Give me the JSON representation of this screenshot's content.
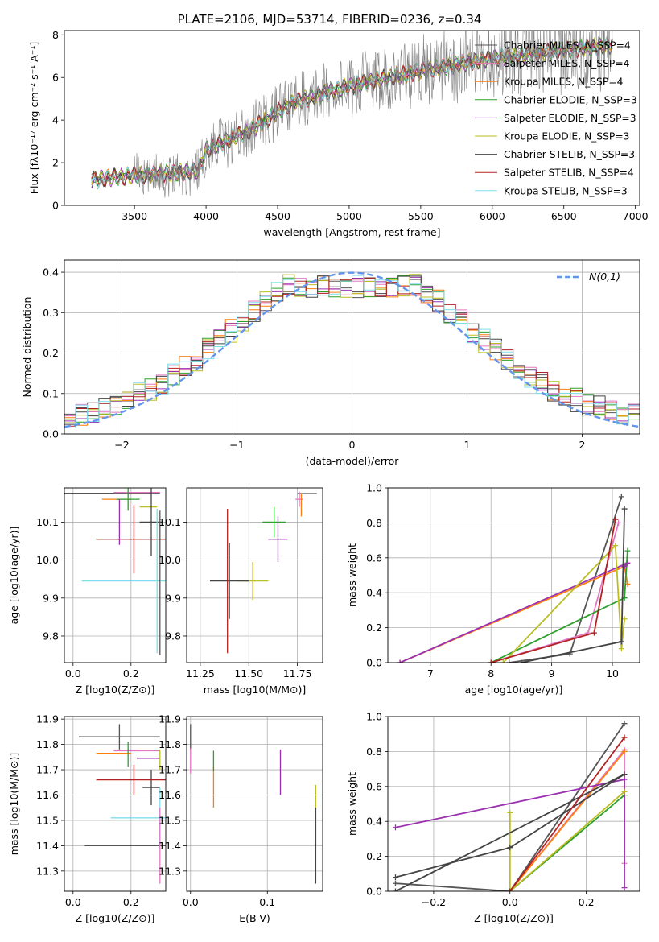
{
  "figure_title": "PLATE=2106, MJD=53714, FIBERID=0236, z=0.34",
  "colors": {
    "c1": "#555555",
    "c2": "#e377c2",
    "c3": "#ff7f0e",
    "c4": "#2ca02c",
    "c5": "#9b30b0",
    "c6": "#bcbd22",
    "c7": "#444444",
    "c8": "#b22222",
    "c9": "#80deea",
    "gauss": "#6495ed",
    "grey": "#808080"
  },
  "chart_data": [
    {
      "id": "spectrum",
      "type": "line",
      "title": "PLATE=2106, MJD=53714, FIBERID=0236, z=0.34",
      "xlabel": "wavelength [Angstrom, rest frame]",
      "ylabel": "Flux [fλ10⁻¹⁷ erg cm⁻² s⁻¹ A⁻¹]",
      "xlim": [
        3010,
        7030
      ],
      "ylim": [
        0,
        8.2
      ],
      "xticks": [
        3500,
        4000,
        4500,
        5000,
        5500,
        6000,
        6500,
        7000
      ],
      "yticks": [
        0,
        2,
        4,
        6,
        8
      ],
      "x_range": [
        3200,
        6840
      ],
      "continuum": [
        [
          3200,
          1.2
        ],
        [
          3500,
          1.4
        ],
        [
          3950,
          1.6
        ],
        [
          4000,
          2.6
        ],
        [
          4300,
          3.5
        ],
        [
          4600,
          4.8
        ],
        [
          5000,
          5.6
        ],
        [
          5500,
          6.3
        ],
        [
          6000,
          6.9
        ],
        [
          6500,
          7.3
        ],
        [
          6840,
          7.5
        ]
      ],
      "legend_position": "top-right",
      "legend": [
        "Chabrier MILES, N_SSP=4",
        "Salpeter MILES, N_SSP=4",
        "Kroupa MILES, N_SSP=4",
        "Chabrier ELODIE, N_SSP=3",
        "Salpeter ELODIE, N_SSP=3",
        "Kroupa ELODIE, N_SSP=3",
        "Chabrier STELIB, N_SSP=3",
        "Salpeter STELIB, N_SSP=4",
        "Kroupa STELIB, N_SSP=3"
      ]
    },
    {
      "id": "residuals",
      "type": "line",
      "xlabel": "(data-model)/error",
      "ylabel": "Normed distribution",
      "xlim": [
        -2.5,
        2.5
      ],
      "ylim": [
        0,
        0.43
      ],
      "xticks": [
        -2,
        -1,
        0,
        1,
        2
      ],
      "yticks": [
        0.0,
        0.1,
        0.2,
        0.3,
        0.4
      ],
      "grid": true,
      "legend_position": "top-right",
      "legend": [
        "N(0,1)"
      ],
      "bin_width": 0.1
    },
    {
      "id": "age_vs_Z",
      "type": "scatter",
      "xlabel": "Z [log10(Z/Z⊙)]",
      "ylabel": "age  [log10(age/yr)]",
      "xlim": [
        -0.03,
        0.32
      ],
      "ylim": [
        9.73,
        10.19
      ],
      "xticks": [
        0.0,
        0.2
      ],
      "yticks": [
        9.8,
        9.9,
        10.0,
        10.1
      ],
      "grid": true,
      "points": [
        {
          "x": 0.08,
          "y": 10.176,
          "xerr": 0.22,
          "yerr": 0.0
        },
        {
          "x": 0.22,
          "y": 10.178,
          "xerr": 0.08,
          "yerr": 0.0
        },
        {
          "x": 0.15,
          "y": 10.16,
          "xerr": 0.05,
          "yerr": 0.0
        },
        {
          "x": 0.19,
          "y": 10.16,
          "xerr": 0.04,
          "yerr": 0.03
        },
        {
          "x": 0.16,
          "y": 10.1,
          "xerr": 0.0,
          "yerr": 0.06
        },
        {
          "x": 0.26,
          "y": 10.14,
          "xerr": 0.03,
          "yerr": 0.0
        },
        {
          "x": 0.27,
          "y": 10.1,
          "xerr": 0.04,
          "yerr": 0.09
        },
        {
          "x": 0.21,
          "y": 10.055,
          "xerr": 0.13,
          "yerr": 0.09
        },
        {
          "x": 0.29,
          "y": 9.945,
          "xerr": 0.26,
          "yerr": 0.19
        },
        {
          "x": 0.3,
          "y": 9.94,
          "xerr": 0.0,
          "yerr": 0.19
        }
      ]
    },
    {
      "id": "age_vs_mass",
      "type": "scatter",
      "xlabel": "mass [log10(M/M⊙)]",
      "ylabel": "",
      "xlim": [
        11.18,
        11.88
      ],
      "ylim": [
        9.73,
        10.19
      ],
      "xticks": [
        11.25,
        11.5,
        11.75
      ],
      "yticks": [
        9.8,
        9.9,
        10.0,
        10.1
      ],
      "grid": true,
      "points": [
        {
          "x": 11.8,
          "y": 10.175,
          "xerr": 0.05,
          "yerr": 0.0
        },
        {
          "x": 11.76,
          "y": 10.16,
          "xerr": 0.02,
          "yerr": 0.02
        },
        {
          "x": 11.77,
          "y": 10.145,
          "xerr": 0.0,
          "yerr": 0.03
        },
        {
          "x": 11.63,
          "y": 10.1,
          "xerr": 0.06,
          "yerr": 0.04
        },
        {
          "x": 11.65,
          "y": 10.055,
          "xerr": 0.05,
          "yerr": 0.06
        },
        {
          "x": 11.52,
          "y": 9.945,
          "xerr": 0.08,
          "yerr": 0.05
        },
        {
          "x": 11.4,
          "y": 9.945,
          "xerr": 0.1,
          "yerr": 0.1
        },
        {
          "x": 11.39,
          "y": 9.945,
          "xerr": 0.0,
          "yerr": 0.19
        }
      ]
    },
    {
      "id": "weight_vs_age",
      "type": "line",
      "xlabel": "age  [log10(age/yr)]",
      "ylabel": "mass weight",
      "xlim": [
        6.3,
        10.45
      ],
      "ylim": [
        0,
        1.0
      ],
      "xticks": [
        7,
        8,
        9,
        10
      ],
      "yticks": [
        0.0,
        0.2,
        0.4,
        0.6,
        0.8,
        1.0
      ],
      "grid": true,
      "series": [
        {
          "points": [
            [
              8.3,
              0.0
            ],
            [
              9.3,
              0.05
            ],
            [
              10.15,
              0.95
            ]
          ]
        },
        {
          "points": [
            [
              8.0,
              0.0
            ],
            [
              9.6,
              0.17
            ],
            [
              10.1,
              0.8
            ]
          ]
        },
        {
          "points": [
            [
              6.5,
              0.0
            ],
            [
              10.2,
              0.55
            ],
            [
              10.25,
              0.45
            ]
          ]
        },
        {
          "points": [
            [
              8.0,
              0.0
            ],
            [
              10.2,
              0.37
            ],
            [
              10.25,
              0.64
            ]
          ]
        },
        {
          "points": [
            [
              6.5,
              0.0
            ],
            [
              10.25,
              0.57
            ],
            [
              10.2,
              0.55
            ]
          ]
        },
        {
          "points": [
            [
              8.2,
              0.0
            ],
            [
              10.05,
              0.67
            ],
            [
              10.15,
              0.08
            ],
            [
              10.2,
              0.25
            ]
          ]
        },
        {
          "points": [
            [
              8.5,
              0.0
            ],
            [
              10.15,
              0.12
            ],
            [
              10.2,
              0.88
            ]
          ]
        },
        {
          "points": [
            [
              8.0,
              0.0
            ],
            [
              9.7,
              0.17
            ],
            [
              10.05,
              0.82
            ]
          ]
        }
      ]
    },
    {
      "id": "mass_vs_Z",
      "type": "scatter",
      "xlabel": "Z [log10(Z/Z⊙)]",
      "ylabel": "mass [log10(M/M⊙)]",
      "xlim": [
        -0.03,
        0.32
      ],
      "ylim": [
        11.22,
        11.91
      ],
      "xticks": [
        0.0,
        0.2
      ],
      "yticks": [
        11.3,
        11.4,
        11.5,
        11.6,
        11.7,
        11.8,
        11.9
      ],
      "grid": true,
      "points": [
        {
          "x": 0.16,
          "y": 11.83,
          "xerr": 0.14,
          "yerr": 0.05
        },
        {
          "x": 0.22,
          "y": 11.775,
          "xerr": 0.08,
          "yerr": 0.0
        },
        {
          "x": 0.14,
          "y": 11.765,
          "xerr": 0.06,
          "yerr": 0.0
        },
        {
          "x": 0.19,
          "y": 11.76,
          "xerr": 0.0,
          "yerr": 0.05
        },
        {
          "x": 0.26,
          "y": 11.745,
          "xerr": 0.04,
          "yerr": 0.0
        },
        {
          "x": 0.3,
          "y": 11.74,
          "xerr": 0.0,
          "yerr": 0.04
        },
        {
          "x": 0.27,
          "y": 11.63,
          "xerr": 0.03,
          "yerr": 0.07
        },
        {
          "x": 0.21,
          "y": 11.66,
          "xerr": 0.13,
          "yerr": 0.06
        },
        {
          "x": 0.3,
          "y": 11.51,
          "xerr": 0.17,
          "yerr": 0.12
        },
        {
          "x": 0.3,
          "y": 11.4,
          "xerr": 0.26,
          "yerr": 0.0
        },
        {
          "x": 0.3,
          "y": 11.4,
          "xerr": 0.0,
          "yerr": 0.15
        }
      ]
    },
    {
      "id": "mass_vs_EBV",
      "type": "scatter",
      "xlabel": "E(B-V)",
      "ylabel": "",
      "xlim": [
        -0.005,
        0.172
      ],
      "ylim": [
        11.22,
        11.91
      ],
      "xticks": [
        0.0,
        0.1
      ],
      "yticks": [
        11.3,
        11.4,
        11.5,
        11.6,
        11.7,
        11.8,
        11.9
      ],
      "grid": true,
      "points": [
        {
          "x": 0.0,
          "y": 11.83,
          "xerr": 0.0,
          "yerr": 0.05
        },
        {
          "x": 0.0,
          "y": 11.735,
          "xerr": 0.0,
          "yerr": 0.05
        },
        {
          "x": 0.03,
          "y": 11.63,
          "xerr": 0.0,
          "yerr": 0.08
        },
        {
          "x": 0.03,
          "y": 11.735,
          "xerr": 0.0,
          "yerr": 0.04
        },
        {
          "x": 0.117,
          "y": 11.69,
          "xerr": 0.0,
          "yerr": 0.09
        },
        {
          "x": 0.163,
          "y": 11.52,
          "xerr": 0.0,
          "yerr": 0.12
        },
        {
          "x": 0.163,
          "y": 11.4,
          "xerr": 0.0,
          "yerr": 0.15
        }
      ]
    },
    {
      "id": "weight_vs_Z",
      "type": "line",
      "xlabel": "Z [log10(Z/Z⊙)]",
      "ylabel": "mass weight",
      "xlim": [
        -0.32,
        0.34
      ],
      "ylim": [
        0,
        1.0
      ],
      "xticks": [
        -0.2,
        0.0,
        0.2
      ],
      "yticks": [
        0.0,
        0.2,
        0.4,
        0.6,
        0.8,
        1.0
      ],
      "grid": true,
      "series": [
        {
          "points": [
            [
              -0.3,
              0.045
            ],
            [
              0.0,
              0.0
            ],
            [
              0.3,
              0.96
            ]
          ]
        },
        {
          "points": [
            [
              0.0,
              0.0
            ],
            [
              0.3,
              0.81
            ],
            [
              0.3,
              0.16
            ]
          ]
        },
        {
          "points": [
            [
              0.0,
              0.0
            ],
            [
              0.3,
              0.8
            ]
          ]
        },
        {
          "points": [
            [
              0.0,
              0.0
            ],
            [
              0.3,
              0.55
            ]
          ]
        },
        {
          "points": [
            [
              -0.3,
              0.365
            ],
            [
              0.3,
              0.64
            ],
            [
              0.3,
              0.02
            ]
          ]
        },
        {
          "points": [
            [
              0.0,
              0.45
            ],
            [
              0.0,
              0.0
            ],
            [
              0.3,
              0.57
            ]
          ]
        },
        {
          "points": [
            [
              -0.3,
              0.08
            ],
            [
              0.0,
              0.25
            ],
            [
              0.3,
              0.67
            ],
            [
              -0.3,
              0.0
            ]
          ]
        },
        {
          "points": [
            [
              0.0,
              0.0
            ],
            [
              0.3,
              0.88
            ]
          ]
        }
      ]
    }
  ]
}
